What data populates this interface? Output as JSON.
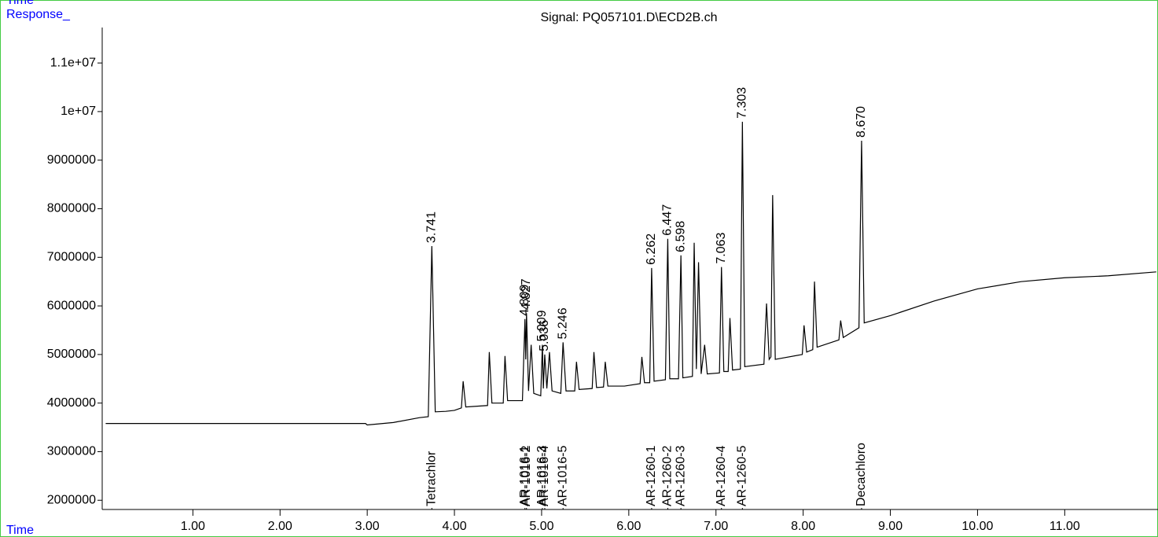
{
  "chart_data": {
    "type": "line",
    "title": "Signal: PQ057101.D\\ECD2B.ch",
    "y_label": "Response_",
    "x_label": "Time",
    "x": [
      0,
      2.98,
      3.0,
      3.3,
      3.6,
      3.7,
      3.741,
      3.78,
      3.9,
      4.0,
      4.08,
      4.1,
      4.13,
      4.38,
      4.4,
      4.43,
      4.56,
      4.58,
      4.61,
      4.78,
      4.809,
      4.818,
      4.827,
      4.85,
      4.88,
      4.91,
      4.99,
      5.009,
      5.02,
      5.036,
      5.06,
      5.09,
      5.12,
      5.22,
      5.246,
      5.28,
      5.38,
      5.4,
      5.43,
      5.58,
      5.6,
      5.63,
      5.71,
      5.73,
      5.76,
      5.95,
      6.13,
      6.15,
      6.18,
      6.24,
      6.262,
      6.29,
      6.42,
      6.447,
      6.47,
      6.57,
      6.598,
      6.62,
      6.73,
      6.75,
      6.775,
      6.8,
      6.83,
      6.87,
      6.9,
      7.04,
      7.063,
      7.09,
      7.14,
      7.16,
      7.19,
      7.28,
      7.303,
      7.33,
      7.55,
      7.58,
      7.61,
      7.63,
      7.65,
      7.68,
      7.99,
      8.01,
      8.04,
      8.11,
      8.13,
      8.16,
      8.41,
      8.43,
      8.46,
      8.64,
      8.67,
      8.7,
      9.0,
      9.5,
      10.0,
      10.5,
      11.0,
      11.5,
      12.05
    ],
    "series": [
      {
        "color": "#000000",
        "values": [
          3580000,
          3580000,
          3550000,
          3600000,
          3700000,
          3720000,
          7230000,
          3820000,
          3830000,
          3850000,
          3900000,
          4450000,
          3920000,
          3950000,
          5050000,
          4000000,
          4000000,
          4970000,
          4050000,
          4050000,
          5730000,
          4900000,
          5850000,
          4250000,
          5200000,
          4200000,
          4150000,
          5200000,
          4300000,
          5000000,
          4300000,
          5050000,
          4250000,
          4200000,
          5250000,
          4250000,
          4250000,
          4850000,
          4280000,
          4300000,
          5050000,
          4320000,
          4330000,
          4850000,
          4350000,
          4350000,
          4400000,
          4950000,
          4420000,
          4420000,
          6780000,
          4450000,
          4480000,
          7380000,
          4500000,
          4500000,
          7040000,
          4520000,
          4550000,
          7300000,
          4700000,
          6900000,
          4600000,
          5200000,
          4600000,
          4620000,
          6800000,
          4650000,
          4650000,
          5750000,
          4680000,
          4700000,
          9790000,
          4750000,
          4800000,
          6050000,
          4900000,
          4950000,
          8280000,
          4900000,
          5000000,
          5600000,
          5050000,
          5100000,
          6500000,
          5150000,
          5300000,
          5700000,
          5350000,
          5550000,
          9400000,
          5650000,
          5800000,
          6100000,
          6350000,
          6500000,
          6580000,
          6620000,
          6700000
        ]
      }
    ],
    "peaks": [
      {
        "rt": 3.741,
        "height": 7230000,
        "compound": "Tetrachlor"
      },
      {
        "rt": 4.809,
        "height": 5730000,
        "compound": "AR-1016-1"
      },
      {
        "rt": 4.827,
        "height": 5850000,
        "compound": "AR-1016-2"
      },
      {
        "rt": 5.009,
        "height": 5200000,
        "compound": "AR-1016-3"
      },
      {
        "rt": 5.036,
        "height": 5000000,
        "compound": "AR-1016-4"
      },
      {
        "rt": 5.246,
        "height": 5250000,
        "compound": "AR-1016-5"
      },
      {
        "rt": 6.262,
        "height": 6780000,
        "compound": "AR-1260-1"
      },
      {
        "rt": 6.447,
        "height": 7380000,
        "compound": "AR-1260-2"
      },
      {
        "rt": 6.598,
        "height": 7040000,
        "compound": "AR-1260-3"
      },
      {
        "rt": 7.063,
        "height": 6800000,
        "compound": "AR-1260-4"
      },
      {
        "rt": 7.303,
        "height": 9790000,
        "compound": "AR-1260-5"
      },
      {
        "rt": {
          "value": 8.67,
          "label": "8.670"
        },
        "height": 9400000,
        "compound": "Decachloro"
      }
    ],
    "xlim": [
      -0.04,
      12.07
    ],
    "ylim": [
      1810000,
      11730000
    ],
    "xticks": [
      {
        "value": 1,
        "label": "1.00"
      },
      {
        "value": 2,
        "label": "2.00"
      },
      {
        "value": 3,
        "label": "3.00"
      },
      {
        "value": 4,
        "label": "4.00"
      },
      {
        "value": 5,
        "label": "5.00"
      },
      {
        "value": 6,
        "label": "6.00"
      },
      {
        "value": 7,
        "label": "7.00"
      },
      {
        "value": 8,
        "label": "8.00"
      },
      {
        "value": 9,
        "label": "9.00"
      },
      {
        "value": 10,
        "label": "10.00"
      },
      {
        "value": 11,
        "label": "11.00"
      }
    ],
    "yticks": [
      2000000,
      3000000,
      4000000,
      5000000,
      6000000,
      7000000,
      8000000,
      9000000,
      {
        "value": 10000000,
        "label": "1e+07"
      },
      {
        "value": 11000000,
        "label": "1.1e+07"
      }
    ],
    "peak_label_color": "#0000ff",
    "compound_label_color": "#000000"
  }
}
